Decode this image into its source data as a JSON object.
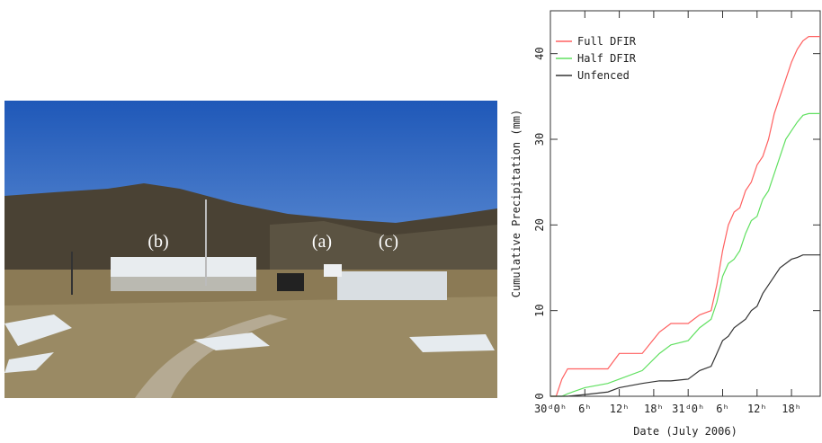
{
  "photo": {
    "labels": [
      "(b)",
      "(a)",
      "(c)"
    ]
  },
  "chart_data": {
    "type": "line",
    "xlabel": "Date (July 2006)",
    "ylabel": "Cumulative Precipitation (mm)",
    "x": [
      0,
      1,
      2,
      3,
      6,
      10,
      12,
      16,
      19,
      21,
      24,
      26,
      28,
      29,
      30,
      31,
      32,
      33,
      34,
      35,
      36,
      37,
      38,
      39,
      40,
      41,
      42,
      43,
      44,
      45,
      46,
      47
    ],
    "series": [
      {
        "name": "Full DFIR",
        "color": "#ff6060",
        "values": [
          0,
          0,
          2,
          3.2,
          3.2,
          3.2,
          5,
          5,
          7.5,
          8.5,
          8.5,
          9.5,
          10,
          13,
          17,
          20,
          21.5,
          22,
          24,
          25,
          27,
          28,
          30,
          33,
          35,
          37,
          39,
          40.5,
          41.5,
          42,
          42,
          42
        ]
      },
      {
        "name": "Half DFIR",
        "color": "#60e060",
        "values": [
          0,
          0,
          0,
          0.3,
          1,
          1.5,
          2,
          3,
          5,
          6,
          6.5,
          8,
          9,
          11,
          14,
          15.5,
          16,
          17,
          19,
          20.5,
          21,
          23,
          24,
          26,
          28,
          30,
          31,
          32,
          32.8,
          33,
          33,
          33
        ]
      },
      {
        "name": "Unfenced",
        "color": "#333333",
        "values": [
          0,
          0,
          0,
          0,
          0.2,
          0.5,
          1,
          1.5,
          1.8,
          1.8,
          2,
          3,
          3.5,
          5,
          6.5,
          7,
          8,
          8.5,
          9,
          10,
          10.5,
          12,
          13,
          14,
          15,
          15.5,
          16,
          16.2,
          16.5,
          16.5,
          16.5,
          16.5
        ]
      }
    ],
    "xlim": [
      0,
      47
    ],
    "ylim": [
      0,
      45
    ],
    "xticks": [
      {
        "value": 0,
        "label": "30ᵈ0ʰ"
      },
      {
        "value": 6,
        "label": "6ʰ"
      },
      {
        "value": 12,
        "label": "12ʰ"
      },
      {
        "value": 18,
        "label": "18ʰ"
      },
      {
        "value": 24,
        "label": "31ᵈ0ʰ"
      },
      {
        "value": 30,
        "label": "6ʰ"
      },
      {
        "value": 36,
        "label": "12ʰ"
      },
      {
        "value": 42,
        "label": "18ʰ"
      }
    ],
    "yticks": [
      0,
      10,
      20,
      30,
      40
    ],
    "legend": "upper left"
  }
}
